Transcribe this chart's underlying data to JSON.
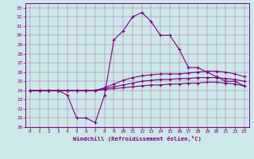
{
  "xlabel": "Windchill (Refroidissement éolien,°C)",
  "bg_color": "#cce8e8",
  "line_color": "#800080",
  "ylim": [
    20,
    33.5
  ],
  "xlim": [
    -0.5,
    23.5
  ],
  "yticks": [
    20,
    21,
    22,
    23,
    24,
    25,
    26,
    27,
    28,
    29,
    30,
    31,
    32,
    33
  ],
  "xticks": [
    0,
    1,
    2,
    3,
    4,
    5,
    6,
    7,
    8,
    9,
    10,
    11,
    12,
    13,
    14,
    15,
    16,
    17,
    18,
    19,
    20,
    21,
    22,
    23
  ],
  "hours": [
    0,
    1,
    2,
    3,
    4,
    5,
    6,
    7,
    8,
    9,
    10,
    11,
    12,
    13,
    14,
    15,
    16,
    17,
    18,
    19,
    20,
    21,
    22,
    23
  ],
  "line1": [
    24,
    24,
    24,
    24,
    23.5,
    21.0,
    21.0,
    20.5,
    23.5,
    29.5,
    30.5,
    32.0,
    32.5,
    31.5,
    30.0,
    30.0,
    28.5,
    26.5,
    26.5,
    26.0,
    25.5,
    25.0,
    25.0,
    24.5
  ],
  "line2": [
    24,
    24,
    24,
    24,
    24.0,
    24.0,
    24.0,
    24.0,
    24.3,
    24.7,
    25.1,
    25.4,
    25.6,
    25.7,
    25.8,
    25.8,
    25.8,
    25.9,
    26.0,
    26.1,
    26.1,
    26.0,
    25.8,
    25.5
  ],
  "line3": [
    24,
    24,
    24,
    24,
    24.0,
    24.0,
    24.0,
    24.0,
    24.2,
    24.4,
    24.6,
    24.8,
    25.0,
    25.1,
    25.2,
    25.2,
    25.3,
    25.3,
    25.4,
    25.4,
    25.4,
    25.3,
    25.2,
    25.0
  ],
  "line4": [
    24,
    24,
    24,
    24,
    24.0,
    24.0,
    24.0,
    24.0,
    24.1,
    24.2,
    24.3,
    24.4,
    24.5,
    24.6,
    24.6,
    24.7,
    24.7,
    24.8,
    24.8,
    24.9,
    24.9,
    24.8,
    24.7,
    24.5
  ]
}
